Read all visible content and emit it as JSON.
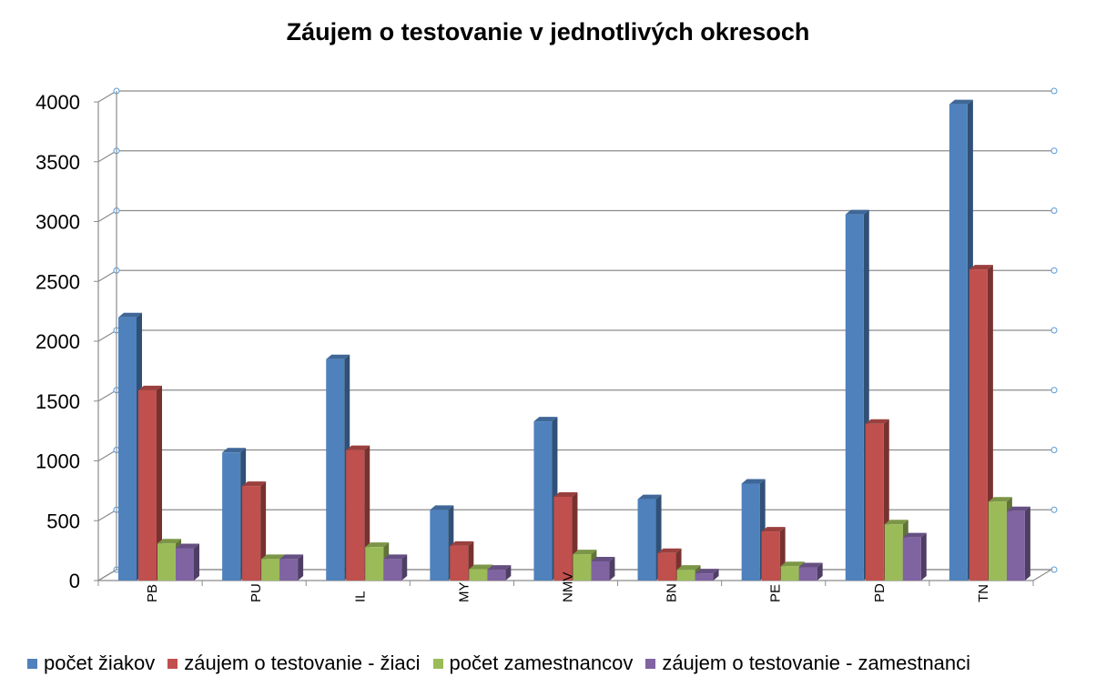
{
  "chart_data": {
    "type": "bar",
    "title": "Záujem o testovanie v jednotlivých okresoch",
    "xlabel": "",
    "ylabel": "",
    "ylim": [
      0,
      4000
    ],
    "yticks": [
      0,
      500,
      1000,
      1500,
      2000,
      2500,
      3000,
      3500,
      4000
    ],
    "categories": [
      "PB",
      "PU",
      "IL",
      "MY",
      "NMV",
      "BN",
      "PE",
      "PD",
      "TN"
    ],
    "series": [
      {
        "name": "počet žiakov",
        "color": "#4F81BD",
        "values": [
          2200,
          1070,
          1850,
          590,
          1330,
          680,
          810,
          3060,
          3980
        ]
      },
      {
        "name": "záujem o testovanie - žiaci",
        "color": "#C0504D",
        "values": [
          1590,
          790,
          1090,
          290,
          700,
          230,
          410,
          1310,
          2600
        ]
      },
      {
        "name": "počet zamestnancov",
        "color": "#9BBB59",
        "values": [
          310,
          180,
          280,
          95,
          220,
          90,
          120,
          470,
          660
        ]
      },
      {
        "name": "záujem o testovanie - zamestnanci",
        "color": "#8064A2",
        "values": [
          270,
          180,
          180,
          90,
          160,
          60,
          110,
          360,
          580
        ]
      }
    ],
    "grid": true,
    "legend_position": "bottom",
    "style": "3d-column"
  }
}
